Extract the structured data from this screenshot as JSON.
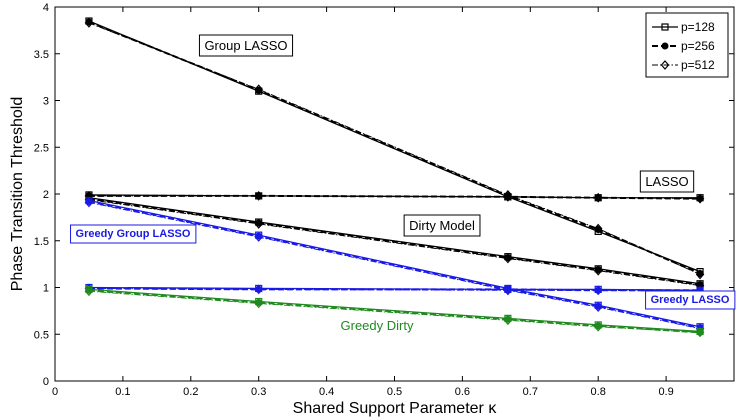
{
  "chart_data": {
    "type": "line",
    "xlabel": "Shared Support Parameter κ",
    "ylabel": "Phase Transition Threshold",
    "xlim": [
      0,
      1
    ],
    "ylim": [
      0,
      4
    ],
    "xticks": [
      0,
      0.1,
      0.2,
      0.3,
      0.4,
      0.5,
      0.6,
      0.7,
      0.8,
      0.9
    ],
    "yticks": [
      0,
      0.5,
      1,
      1.5,
      2,
      2.5,
      3,
      3.5,
      4
    ],
    "grid": false,
    "legend_position": "top-right",
    "legend": [
      {
        "label": "p=128",
        "marker": "square",
        "dash": "solid"
      },
      {
        "label": "p=256",
        "marker": "circle",
        "dash": "dashed"
      },
      {
        "label": "p=512",
        "marker": "diamond",
        "dash": "dashdot"
      }
    ],
    "x": [
      0.05,
      0.3,
      0.667,
      0.8,
      0.95
    ],
    "groups": [
      {
        "name": "Group LASSO",
        "color": "#000000",
        "label_color": "#000000",
        "p128": [
          3.85,
          3.1,
          1.97,
          1.6,
          1.17
        ],
        "p256": [
          3.84,
          3.11,
          1.98,
          1.62,
          1.15
        ],
        "p512": [
          3.83,
          3.12,
          1.99,
          1.63,
          1.14
        ]
      },
      {
        "name": "LASSO",
        "color": "#000000",
        "label_color": "#000000",
        "p128": [
          1.99,
          1.98,
          1.97,
          1.96,
          1.96
        ],
        "p256": [
          1.98,
          1.98,
          1.97,
          1.96,
          1.95
        ],
        "p512": [
          1.98,
          1.98,
          1.97,
          1.96,
          1.95
        ]
      },
      {
        "name": "Dirty Model",
        "color": "#000000",
        "label_color": "#000000",
        "p128": [
          1.96,
          1.7,
          1.33,
          1.2,
          1.04
        ],
        "p256": [
          1.95,
          1.69,
          1.32,
          1.19,
          1.03
        ],
        "p512": [
          1.94,
          1.68,
          1.31,
          1.18,
          1.02
        ]
      },
      {
        "name": "Greedy Group LASSO",
        "color": "#1a1ae6",
        "label_color": "#1a1ae6",
        "p128": [
          1.93,
          1.56,
          0.99,
          0.81,
          0.58
        ],
        "p256": [
          1.92,
          1.55,
          0.98,
          0.8,
          0.57
        ],
        "p512": [
          1.91,
          1.54,
          0.97,
          0.79,
          0.56
        ]
      },
      {
        "name": "Greedy LASSO",
        "color": "#1a1ae6",
        "label_color": "#1a1ae6",
        "p128": [
          1.0,
          0.99,
          0.98,
          0.98,
          0.97
        ],
        "p256": [
          0.99,
          0.98,
          0.98,
          0.97,
          0.97
        ],
        "p512": [
          0.99,
          0.98,
          0.97,
          0.97,
          0.96
        ]
      },
      {
        "name": "Greedy Dirty",
        "color": "#1f8a1f",
        "label_color": "#1f8a1f",
        "p128": [
          0.98,
          0.85,
          0.67,
          0.6,
          0.53
        ],
        "p256": [
          0.97,
          0.84,
          0.66,
          0.59,
          0.52
        ],
        "p512": [
          0.96,
          0.83,
          0.65,
          0.58,
          0.52
        ]
      }
    ]
  }
}
